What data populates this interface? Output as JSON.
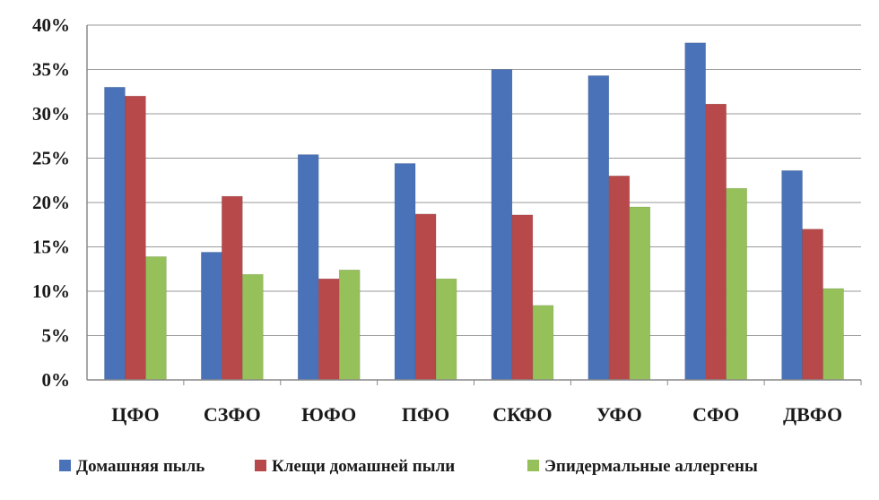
{
  "chart_data": {
    "type": "bar",
    "categories": [
      "ЦФО",
      "СЗФО",
      "ЮФО",
      "ПФО",
      "СКФО",
      "УФО",
      "СФО",
      "ДВФО"
    ],
    "series": [
      {
        "name": "Домашняя пыль",
        "color": "#4a72b8",
        "values": [
          33,
          14.4,
          25.4,
          24.4,
          35,
          34.3,
          38,
          23.6
        ]
      },
      {
        "name": "Клещи домашней пыли",
        "color": "#b8494a",
        "values": [
          32,
          20.7,
          11.4,
          18.7,
          18.6,
          23,
          31.1,
          17
        ]
      },
      {
        "name": "Эпидермальные аллергены",
        "color": "#95c05a",
        "values": [
          13.9,
          11.9,
          12.4,
          11.4,
          8.4,
          19.5,
          21.6,
          10.3
        ]
      }
    ],
    "yticks": [
      "0%",
      "5%",
      "10%",
      "15%",
      "20%",
      "25%",
      "30%",
      "35%",
      "40%"
    ],
    "ylim": [
      0,
      40
    ],
    "grid": true,
    "legend_position": "bottom"
  }
}
